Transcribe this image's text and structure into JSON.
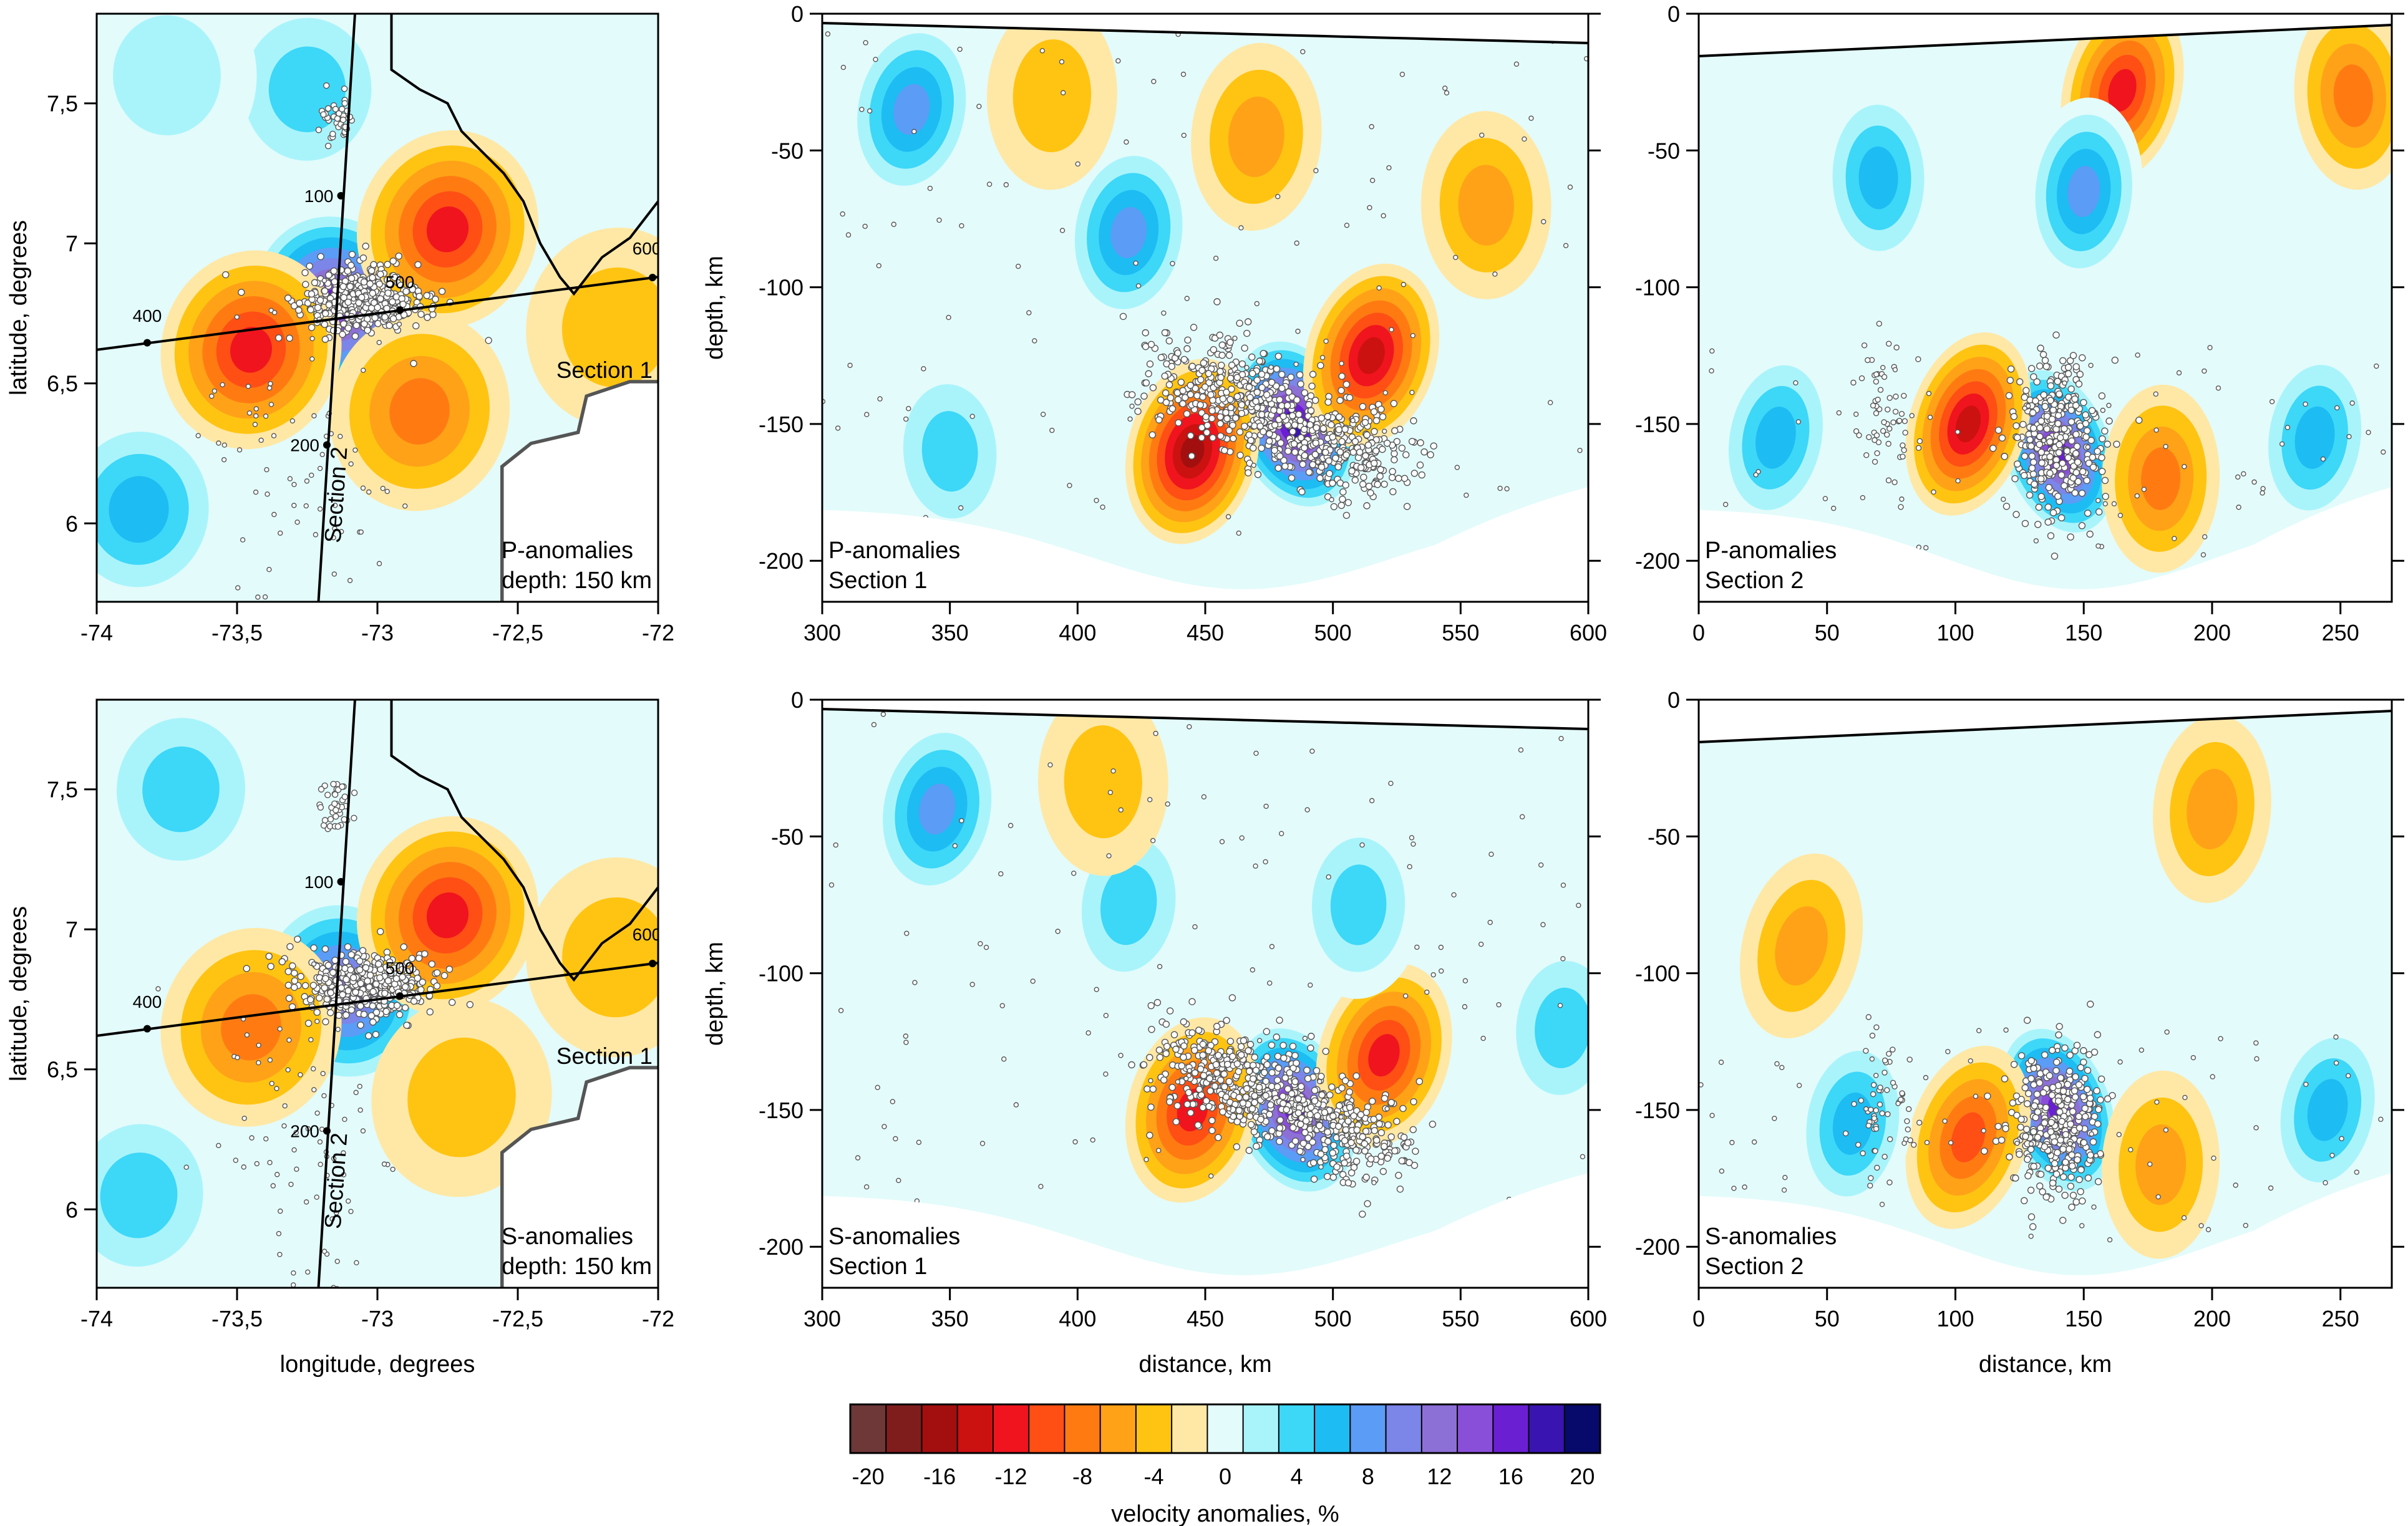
{
  "colors": {
    "scale": [
      "#6e3838",
      "#7f1d1d",
      "#a30f0f",
      "#cc1111",
      "#f0141e",
      "#ff4f15",
      "#ff7b12",
      "#ffa218",
      "#ffc412",
      "#ffe8a6",
      "#e3fbfb",
      "#a9f4fb",
      "#3dd7f8",
      "#1dbcf3",
      "#5b9cf6",
      "#7c85e8",
      "#8d70d6",
      "#8a4fd9",
      "#6a1fd3",
      "#3a14b0",
      "#070a6a"
    ],
    "quake_fill": "#ffffff",
    "quake_stroke": "#555555",
    "coast": "#000000",
    "border": "#555555"
  },
  "chart_data": [
    {
      "id": "p-map",
      "type": "heatmap",
      "title": "P-anomalies",
      "subtitle": "depth: 150 km",
      "xlabel": "",
      "ylabel": "latitude, degrees",
      "xlim": [
        -74,
        -72
      ],
      "ylim": [
        5.72,
        7.82
      ],
      "xticks": [
        "-74",
        "-73,5",
        "-73",
        "-72,5",
        "-72"
      ],
      "yticks": [
        "6",
        "6,5",
        "7",
        "7,5"
      ],
      "profile_lines": [
        {
          "label": "Section 1",
          "markers": [
            "400",
            "500",
            "600"
          ]
        },
        {
          "label": "Section 2",
          "markers": [
            "100",
            "200"
          ]
        }
      ],
      "anomalies": [
        {
          "x": -73.15,
          "y": 6.78,
          "value": 18
        },
        {
          "x": -72.75,
          "y": 7.05,
          "value": -12
        },
        {
          "x": -73.45,
          "y": 6.62,
          "value": -11
        },
        {
          "x": -72.85,
          "y": 6.4,
          "value": -8
        },
        {
          "x": -72.15,
          "y": 6.7,
          "value": -4
        },
        {
          "x": -73.85,
          "y": 6.05,
          "value": 8
        },
        {
          "x": -73.25,
          "y": 7.55,
          "value": 5
        },
        {
          "x": -73.75,
          "y": 7.6,
          "value": 3
        }
      ]
    },
    {
      "id": "p-section-1",
      "type": "heatmap",
      "title": "P-anomalies",
      "subtitle": "Section 1",
      "xlabel": "",
      "ylabel": "depth, km",
      "xlim": [
        300,
        600
      ],
      "ylim": [
        -215,
        0
      ],
      "xticks": [
        "300",
        "350",
        "400",
        "450",
        "500",
        "550",
        "600"
      ],
      "yticks": [
        "0",
        "-50",
        "-100",
        "-150",
        "-200"
      ],
      "anomalies": [
        {
          "x": 485,
          "y": -150,
          "value": 20
        },
        {
          "x": 515,
          "y": -125,
          "value": -14
        },
        {
          "x": 445,
          "y": -160,
          "value": -15
        },
        {
          "x": 335,
          "y": -35,
          "value": 10
        },
        {
          "x": 420,
          "y": -80,
          "value": 9
        },
        {
          "x": 470,
          "y": -45,
          "value": -5
        },
        {
          "x": 390,
          "y": -30,
          "value": -4
        },
        {
          "x": 560,
          "y": -70,
          "value": -5
        },
        {
          "x": 350,
          "y": -160,
          "value": 6
        }
      ]
    },
    {
      "id": "p-section-2",
      "type": "heatmap",
      "title": "P-anomalies",
      "subtitle": "Section 2",
      "xlabel": "",
      "ylabel": "",
      "xlim": [
        0,
        270
      ],
      "ylim": [
        -215,
        0
      ],
      "xticks": [
        "0",
        "50",
        "100",
        "150",
        "200",
        "250"
      ],
      "yticks": [
        "0",
        "-50",
        "-100",
        "-150",
        "-200"
      ],
      "anomalies": [
        {
          "x": 140,
          "y": -160,
          "value": 18
        },
        {
          "x": 105,
          "y": -150,
          "value": -13
        },
        {
          "x": 165,
          "y": -28,
          "value": -12
        },
        {
          "x": 30,
          "y": -155,
          "value": 8
        },
        {
          "x": 240,
          "y": -155,
          "value": 8
        },
        {
          "x": 150,
          "y": -65,
          "value": 9
        },
        {
          "x": 180,
          "y": -170,
          "value": -7
        },
        {
          "x": 70,
          "y": -60,
          "value": 7
        },
        {
          "x": 255,
          "y": -30,
          "value": -8
        }
      ]
    },
    {
      "id": "s-map",
      "type": "heatmap",
      "title": "S-anomalies",
      "subtitle": "depth: 150 km",
      "xlabel": "longitude, degrees",
      "ylabel": "latitude, degrees",
      "xlim": [
        -74,
        -72
      ],
      "ylim": [
        5.72,
        7.82
      ],
      "xticks": [
        "-74",
        "-73,5",
        "-73",
        "-72,5",
        "-72"
      ],
      "yticks": [
        "6",
        "6,5",
        "7",
        "7,5"
      ],
      "profile_lines": [
        {
          "label": "Section 1",
          "markers": [
            "400",
            "500",
            "600"
          ]
        },
        {
          "label": "Section 2",
          "markers": [
            "100",
            "200"
          ]
        }
      ],
      "anomalies": [
        {
          "x": -73.12,
          "y": 6.78,
          "value": 14
        },
        {
          "x": -72.75,
          "y": 7.05,
          "value": -11
        },
        {
          "x": -73.45,
          "y": 6.65,
          "value": -7
        },
        {
          "x": -72.7,
          "y": 6.4,
          "value": -3
        },
        {
          "x": -73.85,
          "y": 6.05,
          "value": 6
        },
        {
          "x": -73.7,
          "y": 7.5,
          "value": 5
        },
        {
          "x": -72.15,
          "y": 6.9,
          "value": -4
        }
      ]
    },
    {
      "id": "s-section-1",
      "type": "heatmap",
      "title": "S-anomalies",
      "subtitle": "Section 1",
      "xlabel": "distance, km",
      "ylabel": "depth, km",
      "xlim": [
        300,
        600
      ],
      "ylim": [
        -215,
        0
      ],
      "xticks": [
        "300",
        "350",
        "400",
        "450",
        "500",
        "550",
        "600"
      ],
      "yticks": [
        "0",
        "-50",
        "-100",
        "-150",
        "-200"
      ],
      "anomalies": [
        {
          "x": 485,
          "y": -150,
          "value": 18
        },
        {
          "x": 520,
          "y": -130,
          "value": -12
        },
        {
          "x": 445,
          "y": -150,
          "value": -12
        },
        {
          "x": 345,
          "y": -40,
          "value": 9
        },
        {
          "x": 420,
          "y": -75,
          "value": 6
        },
        {
          "x": 590,
          "y": -120,
          "value": 5
        },
        {
          "x": 510,
          "y": -75,
          "value": 5
        },
        {
          "x": 410,
          "y": -30,
          "value": -4
        }
      ]
    },
    {
      "id": "s-section-2",
      "type": "heatmap",
      "title": "S-anomalies",
      "subtitle": "Section 2",
      "xlabel": "distance, km",
      "ylabel": "",
      "xlim": [
        0,
        270
      ],
      "ylim": [
        -215,
        0
      ],
      "xticks": [
        "0",
        "50",
        "100",
        "150",
        "200",
        "250"
      ],
      "yticks": [
        "0",
        "-50",
        "-100",
        "-150",
        "-200"
      ],
      "anomalies": [
        {
          "x": 140,
          "y": -150,
          "value": 17
        },
        {
          "x": 105,
          "y": -160,
          "value": -10
        },
        {
          "x": 40,
          "y": -90,
          "value": -6
        },
        {
          "x": 245,
          "y": -150,
          "value": 8
        },
        {
          "x": 60,
          "y": -155,
          "value": 7
        },
        {
          "x": 200,
          "y": -40,
          "value": -5
        },
        {
          "x": 180,
          "y": -170,
          "value": -6
        }
      ]
    }
  ],
  "colorbar": {
    "label": "velocity anomalies, %",
    "ticks": [
      "-20",
      "-16",
      "-12",
      "-8",
      "-4",
      "0",
      "4",
      "8",
      "12",
      "16",
      "20"
    ]
  }
}
